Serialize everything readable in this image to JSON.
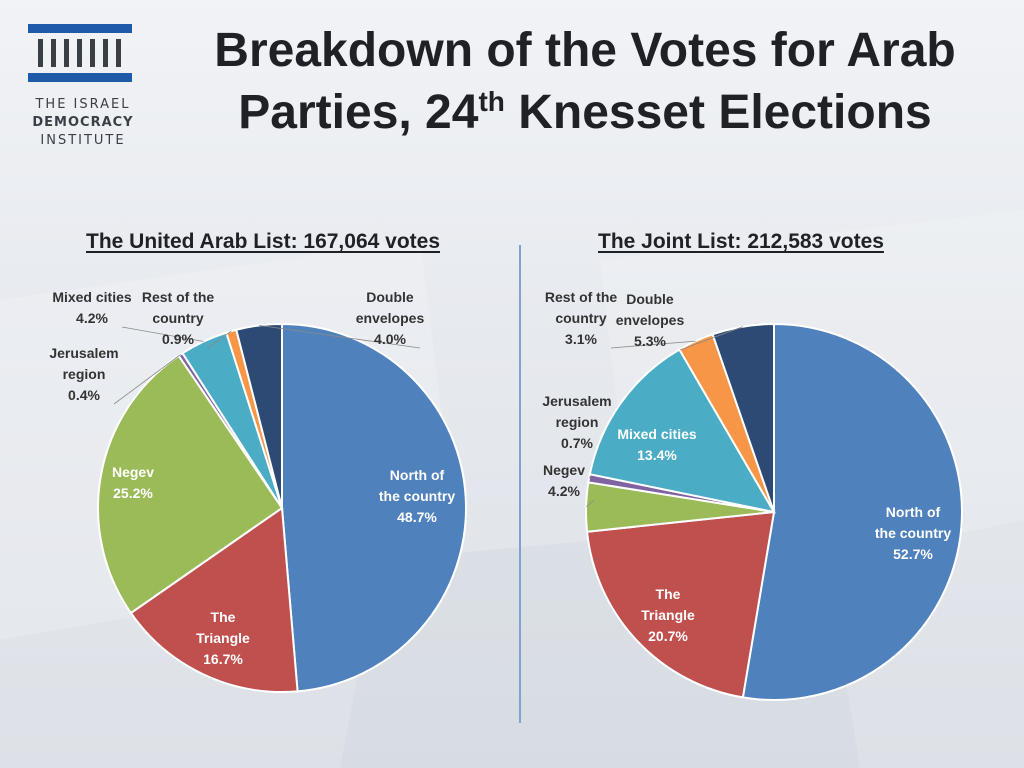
{
  "header": {
    "title_line1": "Breakdown of the Votes for Arab",
    "title_line2_pre": "Parties, 24",
    "title_sup": "th",
    "title_line2_post": " Knesset Elections"
  },
  "logo": {
    "line1": "THE ISRAEL",
    "line2": "DEMOCRACY",
    "line3": "INSTITUTE",
    "icon": "menorah-pillars-icon",
    "color": "#1e5aa8"
  },
  "colors": {
    "north": "#4f81bd",
    "triangle": "#c0504d",
    "negev": "#9bbb59",
    "jerusalem": "#8064a2",
    "mixed": "#4bacc6",
    "rest": "#f79646",
    "double": "#2c4a74",
    "divider": "#7ea3cf"
  },
  "chart_data": [
    {
      "type": "pie",
      "title": "The United Arab List: 167,064 votes",
      "categories": [
        "North of the country",
        "The Triangle",
        "Negev",
        "Jerusalem region",
        "Mixed cities",
        "Rest of the country",
        "Double envelopes"
      ],
      "values": [
        48.7,
        16.7,
        25.2,
        0.4,
        4.2,
        0.9,
        4.0
      ],
      "labels": [
        {
          "lines": [
            "North of",
            "the country",
            "48.7%"
          ]
        },
        {
          "lines": [
            "The",
            "Triangle",
            "16.7%"
          ]
        },
        {
          "lines": [
            "Negev",
            "25.2%"
          ]
        },
        {
          "lines": [
            "Jerusalem",
            "region",
            "0.4%"
          ]
        },
        {
          "lines": [
            "Mixed cities",
            "4.2%"
          ]
        },
        {
          "lines": [
            "Rest of the",
            "country",
            "0.9%"
          ]
        },
        {
          "lines": [
            "Double",
            "envelopes",
            "4.0%"
          ]
        }
      ],
      "legend": "none"
    },
    {
      "type": "pie",
      "title": "The Joint List: 212,583 votes",
      "categories": [
        "North of the country",
        "The Triangle",
        "Negev",
        "Jerusalem region",
        "Mixed cities",
        "Rest of the country",
        "Double envelopes"
      ],
      "values": [
        52.7,
        20.7,
        4.2,
        0.7,
        13.4,
        3.1,
        5.3
      ],
      "labels": [
        {
          "lines": [
            "North of",
            "the country",
            "52.7%"
          ]
        },
        {
          "lines": [
            "The",
            "Triangle",
            "20.7%"
          ]
        },
        {
          "lines": [
            "Negev",
            "4.2%"
          ]
        },
        {
          "lines": [
            "Jerusalem",
            "region",
            "0.7%"
          ]
        },
        {
          "lines": [
            "Mixed cities",
            "13.4%"
          ]
        },
        {
          "lines": [
            "Rest of the",
            "country",
            "3.1%"
          ]
        },
        {
          "lines": [
            "Double",
            "envelopes",
            "5.3%"
          ]
        }
      ],
      "legend": "none"
    }
  ]
}
